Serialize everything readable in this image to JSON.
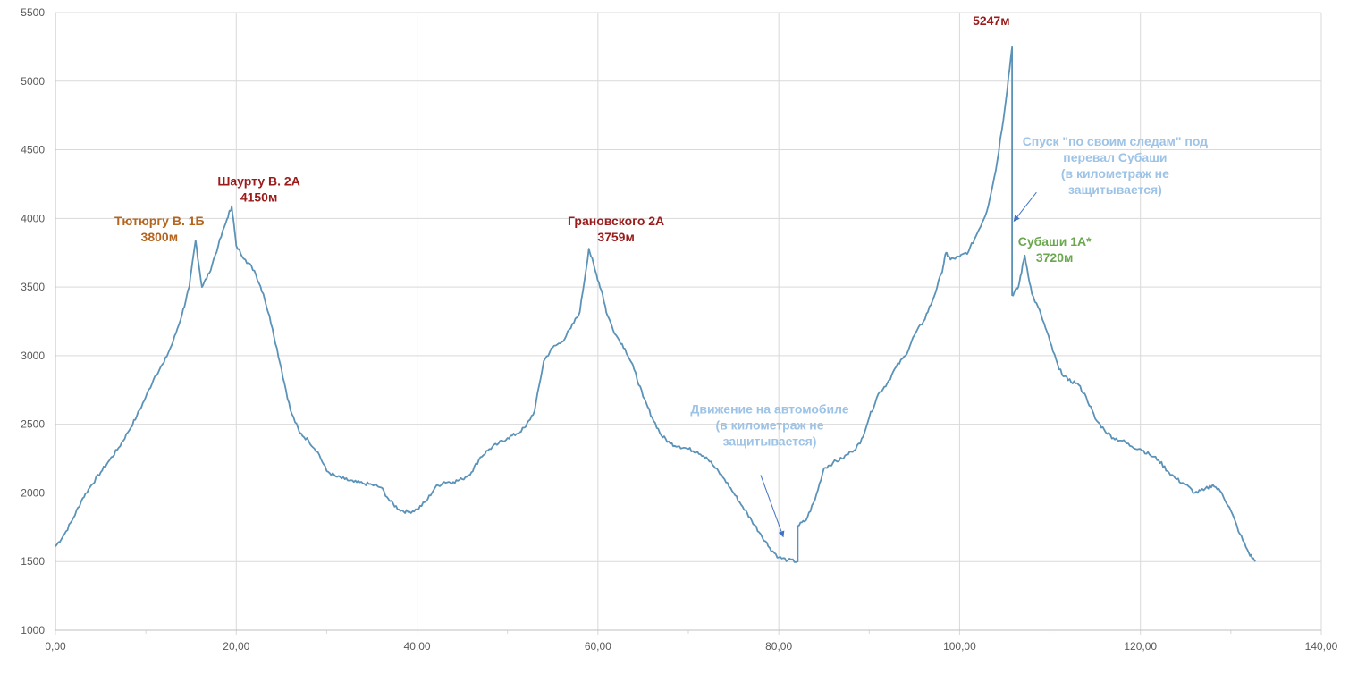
{
  "chart_data": {
    "type": "line",
    "title": "",
    "xlabel": "",
    "ylabel": "",
    "xlim": [
      0,
      140
    ],
    "ylim": [
      1000,
      5500
    ],
    "x_ticks": [
      "0,00",
      "20,00",
      "40,00",
      "60,00",
      "80,00",
      "100,00",
      "120,00",
      "140,00"
    ],
    "y_ticks": [
      "1000",
      "1500",
      "2000",
      "2500",
      "3000",
      "3500",
      "4000",
      "4500",
      "5000",
      "5500"
    ],
    "grid": true,
    "colors": {
      "line": "#5b93b8",
      "grid": "#d9d9d9",
      "peak_label": "#9b1b1b",
      "peak_label_orange": "#b5651d",
      "peak_label_green": "#6aa84f",
      "note": "#9dc3e6"
    },
    "series": [
      {
        "points": [
          [
            0,
            1610
          ],
          [
            1,
            1700
          ],
          [
            2,
            1820
          ],
          [
            3,
            1960
          ],
          [
            4,
            2060
          ],
          [
            5,
            2150
          ],
          [
            6,
            2240
          ],
          [
            7,
            2330
          ],
          [
            8,
            2440
          ],
          [
            9,
            2560
          ],
          [
            10,
            2700
          ],
          [
            11,
            2850
          ],
          [
            12,
            2950
          ],
          [
            13,
            3100
          ],
          [
            14,
            3300
          ],
          [
            14.8,
            3500
          ],
          [
            15.5,
            3840
          ],
          [
            16.2,
            3500
          ],
          [
            17,
            3600
          ],
          [
            18,
            3800
          ],
          [
            19,
            4000
          ],
          [
            19.5,
            4090
          ],
          [
            20,
            3800
          ],
          [
            21,
            3700
          ],
          [
            22,
            3620
          ],
          [
            23,
            3450
          ],
          [
            24,
            3200
          ],
          [
            25,
            2900
          ],
          [
            26,
            2600
          ],
          [
            27,
            2440
          ],
          [
            28,
            2380
          ],
          [
            29,
            2300
          ],
          [
            30,
            2160
          ],
          [
            31,
            2120
          ],
          [
            32,
            2100
          ],
          [
            33,
            2080
          ],
          [
            34,
            2070
          ],
          [
            35,
            2060
          ],
          [
            36,
            2040
          ],
          [
            37,
            1940
          ],
          [
            38,
            1880
          ],
          [
            39,
            1860
          ],
          [
            40,
            1880
          ],
          [
            41,
            1940
          ],
          [
            42,
            2040
          ],
          [
            43,
            2080
          ],
          [
            44,
            2080
          ],
          [
            45,
            2100
          ],
          [
            46,
            2150
          ],
          [
            47,
            2260
          ],
          [
            48,
            2320
          ],
          [
            49,
            2360
          ],
          [
            50,
            2400
          ],
          [
            51,
            2430
          ],
          [
            52,
            2480
          ],
          [
            53,
            2600
          ],
          [
            54,
            2960
          ],
          [
            55,
            3060
          ],
          [
            56,
            3100
          ],
          [
            57,
            3200
          ],
          [
            58,
            3320
          ],
          [
            59,
            3780
          ],
          [
            59.7,
            3620
          ],
          [
            60.5,
            3450
          ],
          [
            61,
            3300
          ],
          [
            62,
            3150
          ],
          [
            63,
            3050
          ],
          [
            64,
            2900
          ],
          [
            65,
            2700
          ],
          [
            66,
            2550
          ],
          [
            67,
            2420
          ],
          [
            68,
            2360
          ],
          [
            69,
            2340
          ],
          [
            70,
            2320
          ],
          [
            71,
            2300
          ],
          [
            72,
            2260
          ],
          [
            73,
            2180
          ],
          [
            74,
            2100
          ],
          [
            75,
            2000
          ],
          [
            76,
            1900
          ],
          [
            77,
            1800
          ],
          [
            78,
            1700
          ],
          [
            79,
            1600
          ],
          [
            80,
            1530
          ],
          [
            81,
            1510
          ],
          [
            82.1,
            1500
          ],
          [
            82.1,
            1760
          ],
          [
            83,
            1800
          ],
          [
            84,
            1950
          ],
          [
            85,
            2180
          ],
          [
            86,
            2220
          ],
          [
            87,
            2250
          ],
          [
            88,
            2300
          ],
          [
            89,
            2360
          ],
          [
            90,
            2550
          ],
          [
            91,
            2720
          ],
          [
            92,
            2800
          ],
          [
            93,
            2920
          ],
          [
            94,
            3000
          ],
          [
            95,
            3150
          ],
          [
            96,
            3250
          ],
          [
            97,
            3400
          ],
          [
            98,
            3600
          ],
          [
            98.5,
            3750
          ],
          [
            99,
            3700
          ],
          [
            100,
            3720
          ],
          [
            101,
            3760
          ],
          [
            102,
            3900
          ],
          [
            103,
            4050
          ],
          [
            104,
            4350
          ],
          [
            105,
            4800
          ],
          [
            105.8,
            5247
          ],
          [
            105.8,
            3440
          ],
          [
            106.5,
            3500
          ],
          [
            107.2,
            3730
          ],
          [
            108,
            3450
          ],
          [
            109,
            3300
          ],
          [
            110,
            3100
          ],
          [
            111,
            2900
          ],
          [
            112,
            2820
          ],
          [
            113,
            2800
          ],
          [
            114,
            2700
          ],
          [
            115,
            2540
          ],
          [
            116,
            2460
          ],
          [
            117,
            2400
          ],
          [
            118,
            2380
          ],
          [
            119,
            2340
          ],
          [
            120,
            2320
          ],
          [
            121,
            2280
          ],
          [
            122,
            2240
          ],
          [
            123,
            2160
          ],
          [
            124,
            2100
          ],
          [
            125,
            2060
          ],
          [
            126,
            2000
          ],
          [
            127,
            2020
          ],
          [
            128,
            2060
          ],
          [
            129,
            2000
          ],
          [
            130,
            1870
          ],
          [
            131,
            1700
          ],
          [
            132,
            1560
          ],
          [
            132.7,
            1500
          ]
        ]
      }
    ],
    "annotations": [
      {
        "id": "peak1",
        "lines": [
          "Тютюргу В. 1Б",
          "3800м"
        ],
        "color": "#b5651d",
        "x": 11.5,
        "y": 3950
      },
      {
        "id": "peak2",
        "lines": [
          "Шаурту В. 2А",
          "4150м"
        ],
        "color": "#9b1b1b",
        "x": 22.5,
        "y": 4240
      },
      {
        "id": "peak3",
        "lines": [
          "Грановского 2А",
          "3759м"
        ],
        "color": "#9b1b1b",
        "x": 62,
        "y": 3950
      },
      {
        "id": "peak4",
        "lines": [
          "5247м"
        ],
        "color": "#9b1b1b",
        "x": 103.5,
        "y": 5410
      },
      {
        "id": "peak5",
        "lines": [
          "Субаши 1А*",
          "3720м"
        ],
        "color": "#6aa84f",
        "x": 110.5,
        "y": 3800
      },
      {
        "id": "note-car",
        "lines": [
          "Движение на автомобиле",
          "(в километраж не",
          "защитывается)"
        ],
        "color": "#9dc3e6",
        "x": 79,
        "y": 2580
      },
      {
        "id": "note-descent",
        "lines": [
          "Спуск \"по своим следам\" под",
          "перевал Субаши",
          "(в километраж не",
          "защитывается)"
        ],
        "color": "#9dc3e6",
        "x": 117.2,
        "y": 4530
      }
    ],
    "arrows": [
      {
        "id": "arrow-car",
        "from": [
          78,
          2130
        ],
        "to": [
          80.5,
          1680
        ]
      },
      {
        "id": "arrow-descent",
        "from": [
          108.5,
          4190
        ],
        "to": [
          106,
          3980
        ]
      }
    ]
  }
}
